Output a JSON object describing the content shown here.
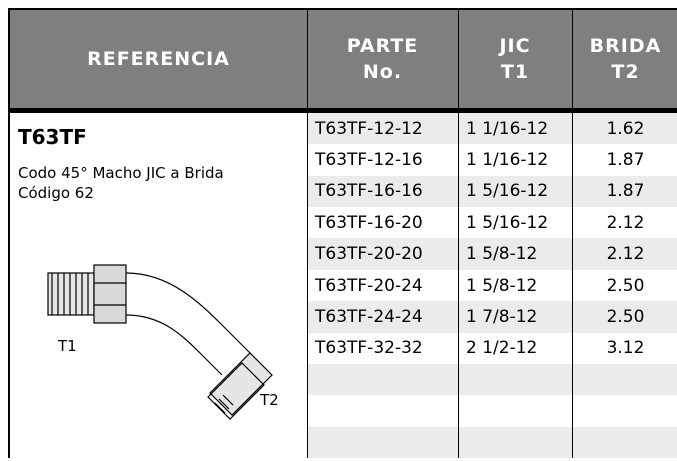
{
  "table": {
    "headers": [
      "REFERENCIA",
      "PARTE\nNo.",
      "JIC\nT1",
      "BRIDA\nT2"
    ],
    "reference": {
      "code": "T63TF",
      "description": "Codo 45° Macho JIC a Brida Código 62",
      "labels": [
        "T1",
        "T2"
      ]
    },
    "rows": [
      [
        "T63TF-12-12",
        "1 1/16-12",
        "1.62"
      ],
      [
        "T63TF-12-16",
        "1 1/16-12",
        "1.87"
      ],
      [
        "T63TF-16-16",
        "1 5/16-12",
        "1.87"
      ],
      [
        "T63TF-16-20",
        "1 5/16-12",
        "2.12"
      ],
      [
        "T63TF-20-20",
        "1 5/8-12",
        "2.12"
      ],
      [
        "T63TF-20-24",
        "1 5/8-12",
        "2.50"
      ],
      [
        "T63TF-24-24",
        "1 7/8-12",
        "2.50"
      ],
      [
        "T63TF-32-32",
        "2 1/2-12",
        "3.12"
      ]
    ]
  }
}
